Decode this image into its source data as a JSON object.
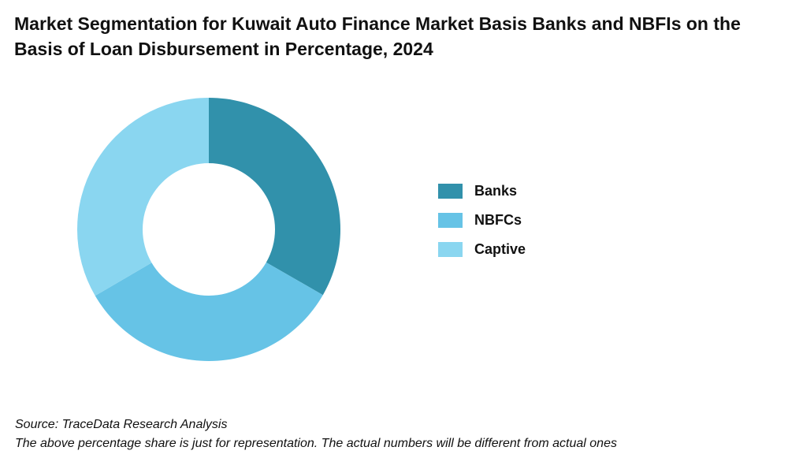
{
  "title": "Market Segmentation for Kuwait Auto Finance Market Basis Banks and NBFIs on the Basis of Loan Disbursement in Percentage, 2024",
  "chart_data": {
    "type": "pie",
    "title": "Market Segmentation for Kuwait Auto Finance Market Basis Banks and NBFIs on the Basis of Loan Disbursement in Percentage, 2024",
    "donut": true,
    "legend_position": "right",
    "categories": [
      "Banks",
      "NBFCs",
      "Captive"
    ],
    "values": [
      33.3,
      33.3,
      33.4
    ],
    "colors": [
      "#3191ab",
      "#66c3e6",
      "#8ad6f0"
    ]
  },
  "footer": {
    "source": "Source: TraceData Research Analysis",
    "note": "The above percentage share is just for representation. The actual numbers will be different from actual ones"
  }
}
